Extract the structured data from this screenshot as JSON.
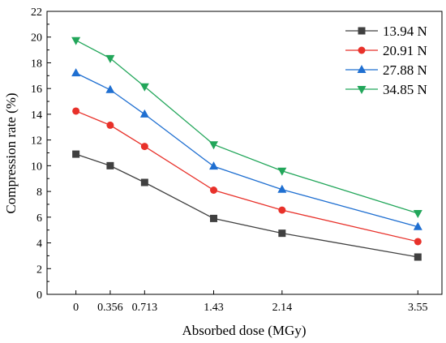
{
  "chart_data": {
    "type": "line",
    "title": "",
    "xlabel": "Absorbed dose (MGy)",
    "ylabel": "Compression rate (%)",
    "x": [
      0,
      0.356,
      0.713,
      1.43,
      2.14,
      3.55
    ],
    "x_tick_labels": [
      "0",
      "0.356",
      "0.713",
      "1.43",
      "2.14",
      "3.55"
    ],
    "xlim": [
      -0.3,
      3.8
    ],
    "ylim": [
      0,
      22
    ],
    "y_ticks": [
      0,
      2,
      4,
      6,
      8,
      10,
      12,
      14,
      16,
      18,
      20,
      22
    ],
    "grid": false,
    "legend_position": "top-right",
    "series": [
      {
        "name": "13.94 N",
        "color": "#404040",
        "marker": "square",
        "values": [
          10.9,
          10.0,
          8.7,
          5.9,
          4.75,
          2.9
        ]
      },
      {
        "name": "20.91 N",
        "color": "#e8312a",
        "marker": "circle",
        "values": [
          14.25,
          13.15,
          11.5,
          8.1,
          6.55,
          4.1
        ]
      },
      {
        "name": "27.88 N",
        "color": "#1f6fd1",
        "marker": "triangle-up",
        "values": [
          17.2,
          15.9,
          14.0,
          9.95,
          8.15,
          5.25
        ]
      },
      {
        "name": "34.85 N",
        "color": "#22a65a",
        "marker": "triangle-down",
        "values": [
          19.75,
          18.35,
          16.15,
          11.65,
          9.6,
          6.3
        ]
      }
    ]
  }
}
